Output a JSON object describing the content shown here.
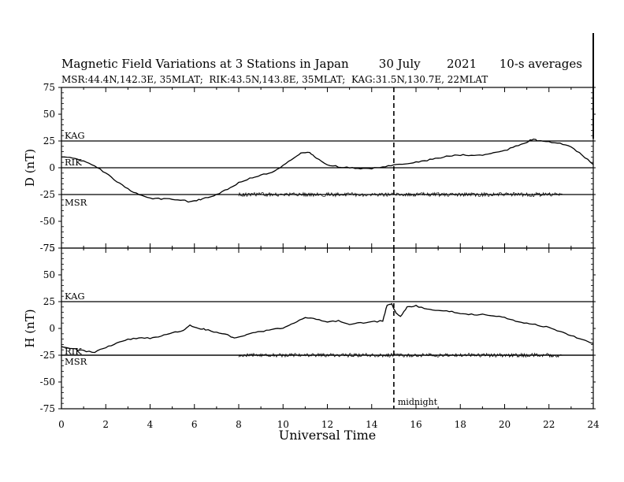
{
  "title": "Magnetic Field Variations at 3 Stations in Japan        30 July       2021      10-s averages",
  "subtitle": "MSR:44.4N,142.3E, 35MLAT;  RIK:43.5N,143.8E, 35MLAT;  KAG:31.5N,130.7E, 22MLAT",
  "chart_data": [
    {
      "type": "line",
      "ylabel": "D (nT)",
      "xlim": [
        0,
        24
      ],
      "ylim": [
        -75,
        75
      ],
      "yticks": [
        75,
        50,
        25,
        0,
        -25,
        -50,
        -75
      ],
      "baselines": [
        {
          "name": "KAG",
          "value": 25
        },
        {
          "name": "RIK",
          "value": 0
        },
        {
          "name": "MSR",
          "value": -25
        }
      ],
      "series": [
        {
          "name": "KAG",
          "x": [
            0,
            0.5,
            1,
            1.5,
            2,
            2.5,
            3,
            3.5,
            4,
            4.5,
            5,
            5.5,
            5.8,
            6.2,
            6.5,
            7,
            7.5,
            8,
            8.5,
            9,
            9.5,
            10,
            10.5,
            10.8,
            11.2,
            11.5,
            12,
            12.5,
            13,
            13.5,
            14,
            14.5,
            15,
            15.5,
            16,
            16.5,
            17,
            17.5,
            18,
            18.5,
            19,
            19.5,
            20,
            20.5,
            21,
            21.3,
            21.5,
            22,
            22.5,
            23,
            23.5,
            24
          ],
          "values": [
            10,
            9,
            6,
            2,
            -5,
            -13,
            -20,
            -25,
            -28.5,
            -29,
            -29.5,
            -30,
            -32,
            -30,
            -28,
            -25,
            -20,
            -14,
            -10,
            -7,
            -4,
            2,
            9,
            14,
            14,
            9,
            3,
            1,
            0,
            -1,
            -0.5,
            0.5,
            3,
            4,
            5,
            7,
            9,
            11,
            12,
            11.5,
            12,
            14,
            16,
            20,
            24,
            27,
            25,
            24,
            23,
            19,
            12,
            3
          ]
        },
        {
          "name": "MSR",
          "x": [
            8,
            10,
            12,
            14,
            16,
            18,
            20,
            22,
            22.6
          ],
          "values": [
            -25,
            -25,
            -25,
            -25,
            -25,
            -25,
            -25,
            -25,
            -25
          ]
        }
      ]
    },
    {
      "type": "line",
      "ylabel": "H (nT)",
      "xlabel": "Universal Time",
      "xlim": [
        0,
        24
      ],
      "ylim": [
        -75,
        75
      ],
      "yticks": [
        75,
        50,
        25,
        0,
        -25,
        -50,
        -75
      ],
      "xticks": [
        0,
        2,
        4,
        6,
        8,
        10,
        12,
        14,
        16,
        18,
        20,
        22,
        24
      ],
      "baselines": [
        {
          "name": "KAG",
          "value": 25
        },
        {
          "name": "RIK",
          "value": -25
        },
        {
          "name": "MSR",
          "value": -25
        }
      ],
      "series": [
        {
          "name": "KAG",
          "x": [
            0,
            0.5,
            1,
            1.5,
            2,
            2.5,
            3,
            3.5,
            4,
            4.5,
            5,
            5.5,
            5.8,
            6.2,
            6.5,
            7,
            7.5,
            7.8,
            8.2,
            8.5,
            9,
            9.5,
            10,
            10.5,
            11,
            11.5,
            12,
            12.5,
            13,
            13.5,
            14,
            14.5,
            14.7,
            14.9,
            15.1,
            15.3,
            15.6,
            16,
            16.5,
            17,
            17.5,
            18,
            18.5,
            19,
            19.5,
            20,
            20.5,
            21,
            21.5,
            22,
            22.5,
            23,
            23.5,
            24
          ],
          "values": [
            -17,
            -19,
            -21,
            -22,
            -18,
            -14,
            -10,
            -9,
            -9,
            -7,
            -4,
            -2,
            3,
            0,
            -1,
            -4,
            -6,
            -9,
            -7,
            -5,
            -3,
            -1,
            0,
            5,
            10,
            9,
            6,
            7,
            4,
            5,
            6,
            7,
            22,
            23,
            14,
            11,
            20,
            21,
            18,
            17,
            16,
            14,
            13,
            13,
            12,
            10,
            7,
            5,
            3,
            1,
            -3,
            -7,
            -10,
            -14
          ]
        },
        {
          "name": "MSR",
          "x": [
            8,
            10,
            12,
            14,
            16,
            18,
            20,
            22,
            22.6
          ],
          "values": [
            -25,
            -25,
            -25,
            -25,
            -25,
            -25,
            -25,
            -25,
            -25
          ]
        }
      ]
    }
  ],
  "annotations": {
    "midnight_x": 15,
    "midnight_label": "midnight"
  }
}
